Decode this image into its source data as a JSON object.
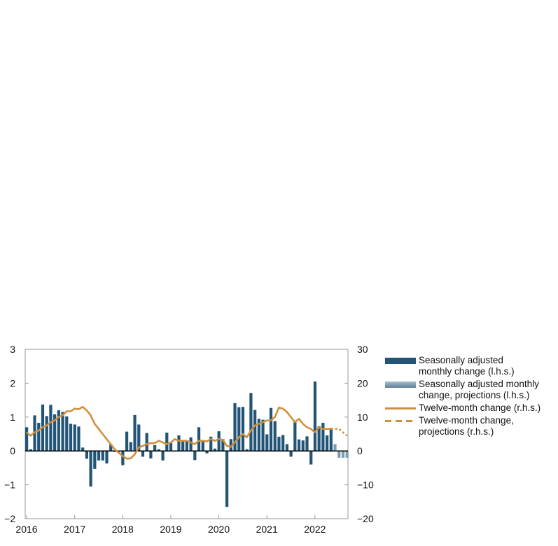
{
  "chart_data": {
    "type": "bar+line",
    "yleft": {
      "min": -2,
      "max": 3,
      "ticks": [
        "3",
        "2",
        "1",
        "0",
        "−1",
        "−2"
      ]
    },
    "yright": {
      "min": -20,
      "max": 30,
      "ticks": [
        "30",
        "20",
        "10",
        "0",
        "−10",
        "−20"
      ]
    },
    "xticks": [
      "2016",
      "2017",
      "2018",
      "2019",
      "2020",
      "2021",
      "2022"
    ],
    "start": "2016-01",
    "bars": [
      0.7,
      0.05,
      1.05,
      0.83,
      1.37,
      1.03,
      1.36,
      1.08,
      1.2,
      1.15,
      1.02,
      0.8,
      0.78,
      0.72,
      0.1,
      -0.23,
      -1.05,
      -0.53,
      -0.28,
      -0.28,
      -0.37,
      0.2,
      -0.03,
      -0.03,
      -0.42,
      0.57,
      0.26,
      1.06,
      0.78,
      -0.17,
      0.53,
      -0.22,
      0.17,
      0.05,
      -0.28,
      0.54,
      0.23,
      -0.02,
      0.46,
      0.28,
      0.3,
      0.4,
      -0.27,
      0.7,
      0.27,
      -0.07,
      0.42,
      0.07,
      0.58,
      0.35,
      -1.65,
      0.35,
      1.41,
      1.29,
      1.3,
      0.05,
      1.71,
      1.21,
      0.95,
      0.92,
      0.49,
      1.27,
      0.88,
      0.42,
      0.47,
      0.2,
      -0.17,
      0.86,
      0.34,
      0.31,
      0.43,
      -0.4,
      2.05,
      0.73,
      0.83,
      0.46,
      0.68
    ],
    "bars_projection": [
      0.2,
      -0.2,
      -0.2,
      -0.2
    ],
    "line": [
      5.5,
      4.5,
      5.5,
      6,
      7,
      7.5,
      8.5,
      9,
      10,
      10.5,
      11.7,
      11.7,
      12.5,
      12.3,
      13,
      12,
      10.5,
      8,
      6.5,
      5,
      3.5,
      2,
      0.5,
      -0.5,
      -1.5,
      -2.3,
      -2.2,
      -1,
      1,
      1.5,
      2,
      2.3,
      2.3,
      3,
      2.5,
      2,
      2.5,
      3.5,
      3,
      3,
      3,
      2.5,
      2,
      3,
      3,
      2.8,
      3.5,
      3,
      3.5,
      3.3,
      1.5,
      1.2,
      2.5,
      4,
      5,
      4,
      6,
      7.5,
      8,
      8.5,
      9,
      9,
      10,
      12.8,
      12.5,
      11.5,
      10,
      8.5,
      9.5,
      8,
      7,
      6.5,
      5.5,
      7,
      6.5,
      6.5,
      6.5
    ],
    "line_projection": [
      6.5,
      6.5,
      6.5,
      5.5,
      4.5
    ],
    "legend": [
      {
        "label": "Seasonally adjusted\nmonthly change (l.h.s.)",
        "kind": "bar"
      },
      {
        "label": "Seasonally adjusted monthly\n change, projections (l.h.s.)",
        "kind": "barproj"
      },
      {
        "label": "Twelve-month change (r.h.s.)",
        "kind": "line"
      },
      {
        "label": "Twelve-month change,\nprojections (r.h.s.)",
        "kind": "lineproj"
      }
    ],
    "colors": {
      "bar": "#215476",
      "barproj": "#7a9cb4",
      "line": "#d08f3c"
    }
  }
}
